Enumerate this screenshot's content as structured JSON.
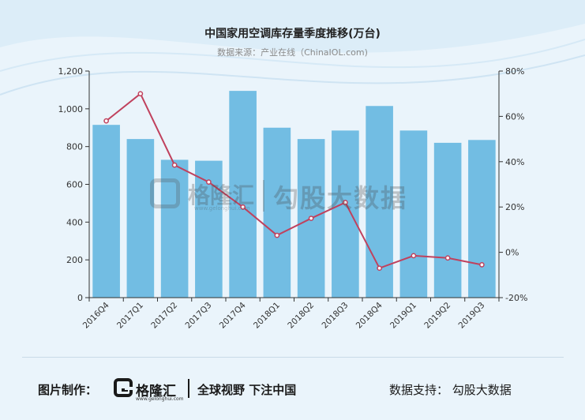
{
  "header": {
    "title": "中国家用空调库存量季度推移(万台)",
    "source": "数据来源：产业在线（ChinaIOL.com)"
  },
  "watermark": {
    "brand": "格隆汇",
    "url": "www.gelonghui.com",
    "slogan": "勾股大数据"
  },
  "footer": {
    "made_by": "图片制作：",
    "brand": "格隆汇",
    "brand_url": "www.gelonghui.com",
    "slogan": "全球视野 下注中国",
    "support": "数据支持：  勾股大数据"
  },
  "colors": {
    "bar": "#72bde3",
    "line": "#c0415d",
    "axis": "#333333"
  },
  "chart_data": {
    "type": "bar",
    "categories": [
      "2016Q4",
      "2017Q1",
      "2017Q2",
      "2017Q3",
      "2017Q4",
      "2018Q1",
      "2018Q2",
      "2018Q3",
      "2018Q4",
      "2019Q1",
      "2019Q2",
      "2019Q3"
    ],
    "series": [
      {
        "type": "bar",
        "axis": "left",
        "values": [
          915,
          840,
          730,
          725,
          1095,
          900,
          840,
          885,
          1015,
          885,
          820,
          835
        ]
      },
      {
        "type": "line",
        "axis": "right",
        "values": [
          58,
          70,
          38.5,
          31,
          20,
          7.5,
          15,
          22,
          -7,
          -1.5,
          -2.5,
          -5.5
        ]
      }
    ],
    "ylim": [
      0,
      1200
    ],
    "yticks": [
      "0",
      "200",
      "400",
      "600",
      "800",
      "1,000",
      "1,200"
    ],
    "y2lim": [
      -20,
      80
    ],
    "y2ticks": [
      "-20%",
      "0%",
      "20%",
      "40%",
      "60%",
      "80%"
    ]
  }
}
